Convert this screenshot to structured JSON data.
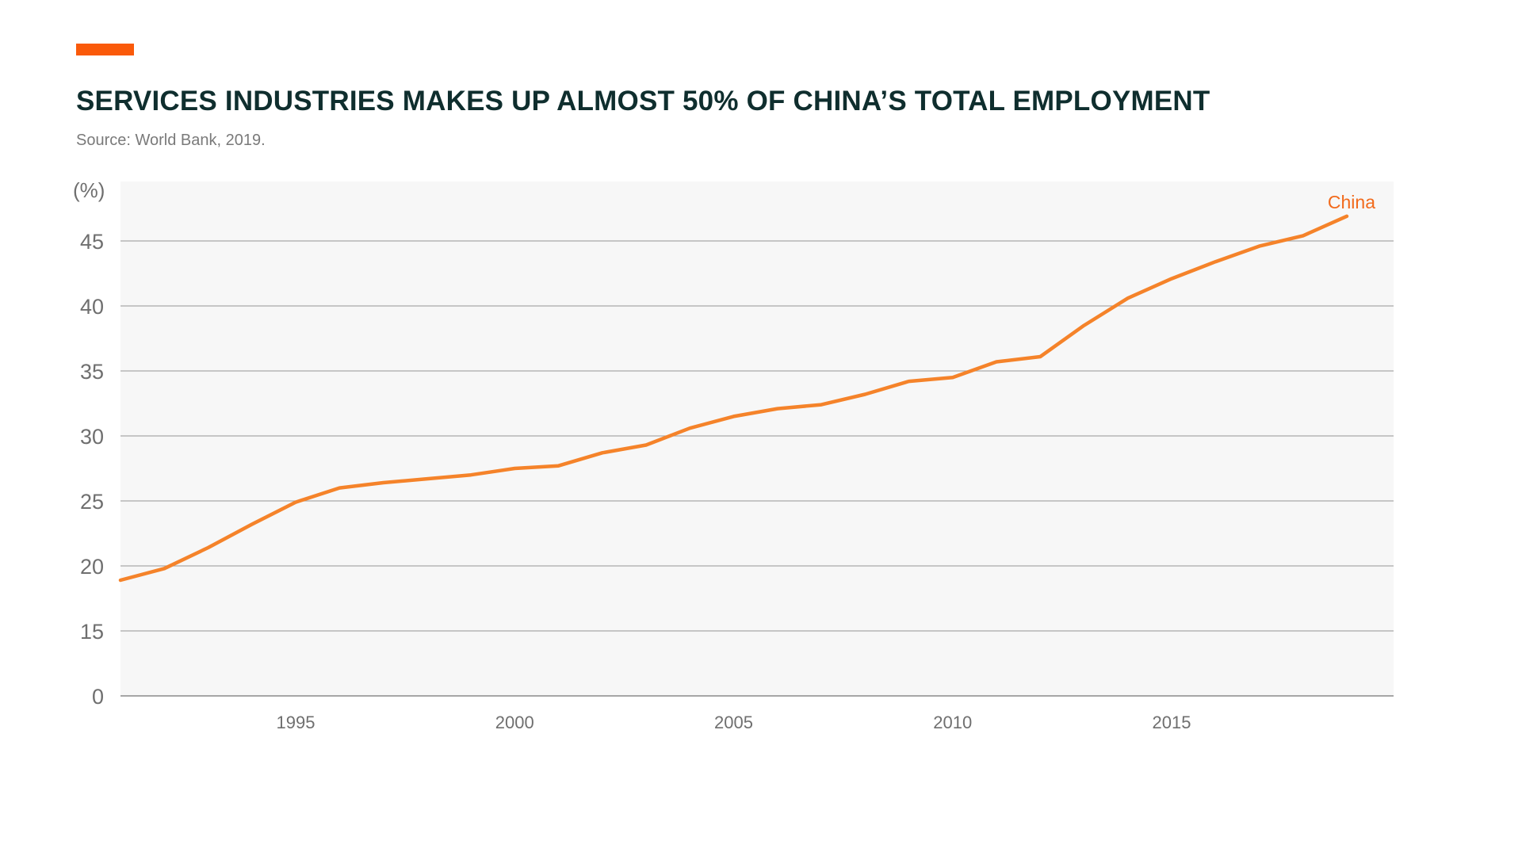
{
  "header": {
    "title": "SERVICES INDUSTRIES MAKES UP ALMOST 50% OF CHINA’S TOTAL EMPLOYMENT",
    "source": "Source: World Bank, 2019.",
    "accent_color": "#fa5a0a"
  },
  "chart_data": {
    "type": "line",
    "title": "SERVICES INDUSTRIES MAKES UP ALMOST 50% OF CHINA’S TOTAL EMPLOYMENT",
    "subtitle": "Source: World Bank, 2019.",
    "xlabel": "",
    "ylabel": "(%)",
    "xlim": [
      1991,
      2020
    ],
    "x_ticks": [
      1995,
      2000,
      2005,
      2010,
      2015
    ],
    "y_ticks": [
      0,
      15,
      20,
      25,
      30,
      35,
      40,
      45
    ],
    "y_axis_break": "0 directly below 15 (scale compressed between 0 and 15)",
    "ylim": [
      0,
      49.4
    ],
    "grid": "horizontal",
    "legend": "inline label at end of line",
    "plot_background": "#f7f7f7",
    "series": [
      {
        "name": "China",
        "color": "#f5832a",
        "label_color": "#f26a1b",
        "x": [
          1991,
          1992,
          1993,
          1994,
          1995,
          1996,
          1997,
          1998,
          1999,
          2000,
          2001,
          2002,
          2003,
          2004,
          2005,
          2006,
          2007,
          2008,
          2009,
          2010,
          2011,
          2012,
          2013,
          2014,
          2015,
          2016,
          2017,
          2018,
          2019
        ],
        "values": [
          18.9,
          19.8,
          21.4,
          23.2,
          24.9,
          26.0,
          26.4,
          26.7,
          27.0,
          27.5,
          27.7,
          28.7,
          29.3,
          30.6,
          31.5,
          32.1,
          32.4,
          33.2,
          34.2,
          34.5,
          35.7,
          36.1,
          38.5,
          40.6,
          42.1,
          43.4,
          44.6,
          45.4,
          46.9
        ]
      }
    ]
  }
}
